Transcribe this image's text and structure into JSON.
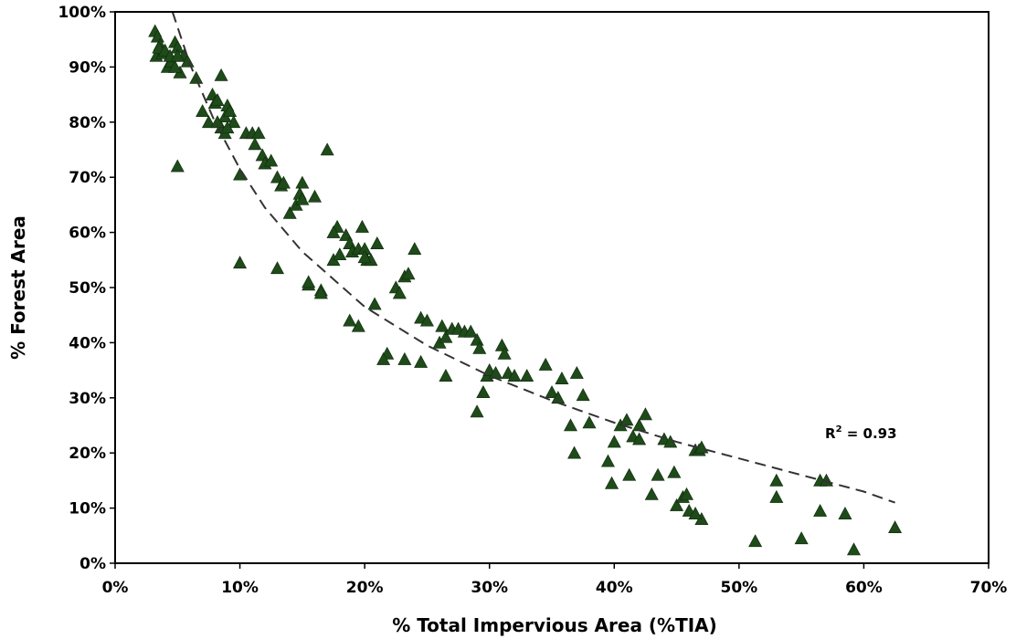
{
  "chart_data": {
    "type": "scatter",
    "xlabel": "% Total Impervious Area (%TIA)",
    "ylabel": "% Forest Area",
    "xlim": [
      0,
      0.7
    ],
    "ylim": [
      0,
      1.0
    ],
    "x_ticks": [
      "0%",
      "10%",
      "20%",
      "30%",
      "40%",
      "50%",
      "60%",
      "70%"
    ],
    "y_ticks": [
      "0%",
      "10%",
      "20%",
      "30%",
      "40%",
      "50%",
      "60%",
      "70%",
      "80%",
      "90%",
      "100%"
    ],
    "annotation": {
      "r2_label": "R",
      "r2_sup": "2",
      "r2_value": " = 0.93"
    },
    "marker_color": "#1f4a1a",
    "trend_color": "#333333",
    "trendline": {
      "x": [
        0.046,
        0.06,
        0.08,
        0.1,
        0.12,
        0.15,
        0.2,
        0.25,
        0.3,
        0.35,
        0.4,
        0.45,
        0.5,
        0.55,
        0.6,
        0.625
      ],
      "y": [
        1.0,
        0.905,
        0.8,
        0.715,
        0.645,
        0.565,
        0.465,
        0.395,
        0.34,
        0.295,
        0.255,
        0.22,
        0.19,
        0.16,
        0.13,
        0.11
      ]
    },
    "series": [
      {
        "x": [
          0.032,
          0.034,
          0.036,
          0.033,
          0.038,
          0.035,
          0.04,
          0.042,
          0.045,
          0.044,
          0.048,
          0.05,
          0.052,
          0.055,
          0.058,
          0.05,
          0.065,
          0.07,
          0.075,
          0.078,
          0.08,
          0.082,
          0.085,
          0.088,
          0.09,
          0.085,
          0.092,
          0.095,
          0.088,
          0.082,
          0.09,
          0.1,
          0.105,
          0.11,
          0.112,
          0.115,
          0.118,
          0.12,
          0.125,
          0.13,
          0.133,
          0.135,
          0.14,
          0.145,
          0.15,
          0.148,
          0.15,
          0.155,
          0.16,
          0.165,
          0.17,
          0.175,
          0.178,
          0.18,
          0.185,
          0.188,
          0.19,
          0.195,
          0.198,
          0.2,
          0.202,
          0.205,
          0.208,
          0.21,
          0.175,
          0.155,
          0.13,
          0.2,
          0.225,
          0.228,
          0.232,
          0.235,
          0.24,
          0.245,
          0.25,
          0.26,
          0.262,
          0.265,
          0.27,
          0.275,
          0.28,
          0.285,
          0.29,
          0.292,
          0.295,
          0.298,
          0.3,
          0.305,
          0.31,
          0.312,
          0.315,
          0.32,
          0.33,
          0.345,
          0.35,
          0.355,
          0.358,
          0.365,
          0.37,
          0.375,
          0.38,
          0.395,
          0.4,
          0.405,
          0.41,
          0.415,
          0.42,
          0.425,
          0.43,
          0.435,
          0.44,
          0.445,
          0.45,
          0.455,
          0.46,
          0.465,
          0.47,
          0.468,
          0.412,
          0.295,
          0.29,
          0.265,
          0.245,
          0.232,
          0.218,
          0.215,
          0.195,
          0.188,
          0.165,
          0.1,
          0.05,
          0.048,
          0.53,
          0.565,
          0.57,
          0.53,
          0.513,
          0.55,
          0.585,
          0.592,
          0.625,
          0.565,
          0.368,
          0.398,
          0.42,
          0.448,
          0.458,
          0.465,
          0.47
        ],
        "y": [
          0.965,
          0.955,
          0.94,
          0.92,
          0.925,
          0.935,
          0.93,
          0.9,
          0.91,
          0.92,
          0.945,
          0.935,
          0.89,
          0.92,
          0.91,
          0.72,
          0.88,
          0.82,
          0.8,
          0.85,
          0.835,
          0.84,
          0.885,
          0.81,
          0.83,
          0.79,
          0.82,
          0.8,
          0.78,
          0.8,
          0.79,
          0.705,
          0.78,
          0.78,
          0.76,
          0.78,
          0.74,
          0.725,
          0.73,
          0.7,
          0.685,
          0.69,
          0.635,
          0.65,
          0.69,
          0.67,
          0.66,
          0.505,
          0.665,
          0.495,
          0.75,
          0.55,
          0.61,
          0.56,
          0.595,
          0.58,
          0.565,
          0.57,
          0.61,
          0.57,
          0.55,
          0.55,
          0.47,
          0.58,
          0.6,
          0.51,
          0.535,
          0.555,
          0.5,
          0.49,
          0.52,
          0.525,
          0.57,
          0.445,
          0.44,
          0.4,
          0.43,
          0.41,
          0.425,
          0.425,
          0.42,
          0.42,
          0.405,
          0.39,
          0.31,
          0.34,
          0.35,
          0.345,
          0.395,
          0.38,
          0.345,
          0.34,
          0.34,
          0.36,
          0.31,
          0.3,
          0.335,
          0.25,
          0.345,
          0.305,
          0.255,
          0.185,
          0.22,
          0.25,
          0.26,
          0.23,
          0.25,
          0.27,
          0.125,
          0.16,
          0.225,
          0.22,
          0.105,
          0.12,
          0.095,
          0.205,
          0.08,
          0.205,
          0.16,
          0.31,
          0.275,
          0.34,
          0.365,
          0.37,
          0.38,
          0.37,
          0.43,
          0.44,
          0.49,
          0.545,
          0.92,
          0.9,
          0.15,
          0.15,
          0.15,
          0.12,
          0.04,
          0.045,
          0.09,
          0.025,
          0.065,
          0.095,
          0.2,
          0.145,
          0.225,
          0.165,
          0.125,
          0.09,
          0.21
        ]
      }
    ]
  }
}
